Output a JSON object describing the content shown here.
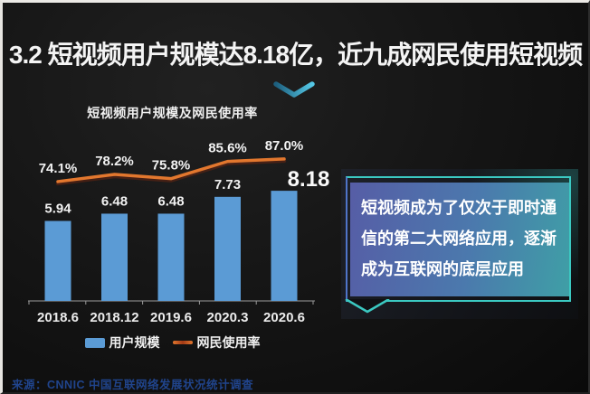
{
  "title": "3.2 短视频用户规模达8.18亿，近九成网民使用短视频",
  "chart_data": {
    "type": "bar+line",
    "title": "短视频用户规模及网民使用率",
    "categories": [
      "2018.6",
      "2018.12",
      "2019.6",
      "2020.3",
      "2020.6"
    ],
    "series": [
      {
        "name": "用户规模",
        "type": "bar",
        "unit": "亿",
        "values": [
          5.94,
          6.48,
          6.48,
          7.73,
          8.18
        ],
        "value_labels": [
          "5.94",
          "6.48",
          "6.48",
          "7.73",
          "8.18"
        ],
        "color": "#5b9bd5"
      },
      {
        "name": "网民使用率",
        "type": "line",
        "unit": "%",
        "values": [
          74.1,
          78.2,
          75.8,
          85.6,
          87.0
        ],
        "value_labels": [
          "74.1%",
          "78.2%",
          "75.8%",
          "85.6%",
          "87.0%"
        ],
        "color": "#e2772e"
      }
    ],
    "legend_position": "bottom",
    "grid": false,
    "bar_ylim": [
      0,
      9
    ],
    "highlight_last_bar_label": true
  },
  "callout": {
    "text": "短视频成为了仅次于即时通信的第二大网络应用，逐渐成为互联网的底层应用",
    "lines": [
      "短视频成为了仅次于即时通",
      "信的第二大网络应用，逐渐",
      "成为互联网的底层应用"
    ]
  },
  "source": "来源：CNNIC 中国互联网络发展状况统计调查",
  "icons": {
    "chevron_down": "chevron-down-icon",
    "callout_tail": "callout-tail-icon"
  },
  "colors": {
    "background": "#141414",
    "title_text": "#f4f4f4",
    "bar_fill": "#5b9bd5",
    "line_stroke": "#e2772e",
    "accent_teal": "#3bc9c2",
    "callout_gradient_start": "#565da6",
    "callout_gradient_end": "#3f9fa6",
    "chevron": "#46b8d8",
    "source_text": "#20448c"
  }
}
